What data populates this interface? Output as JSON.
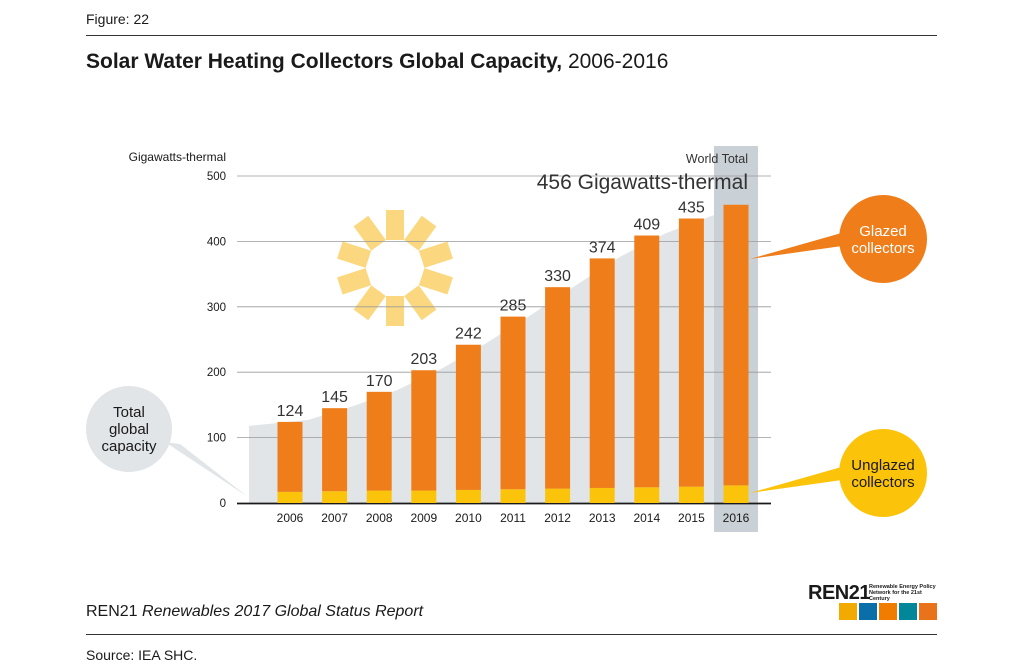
{
  "figure_label": "Figure: 22",
  "title_bold": "Solar Water Heating Collectors Global Capacity,",
  "title_years": "2006-2016",
  "report": {
    "org": "REN21",
    "name": "Renewables 2017 Global Status Report"
  },
  "source": "Source: IEA SHC.",
  "logo": {
    "text": "REN21",
    "subtitle": "Renewable Energy Policy Network for the 21st Century",
    "icon_colors": [
      "#f2a900",
      "#0a6ea8",
      "#f07d00",
      "#00889a",
      "#e8731a"
    ]
  },
  "colors": {
    "glazed": "#ef7d1a",
    "unglazed": "#fcc30b",
    "total_area": "#e1e5e8",
    "highlight": "#c9d0d6",
    "sun": "#fbd87f"
  },
  "chart_data": {
    "type": "bar",
    "stacked": true,
    "ylabel": "Gigawatts-thermal",
    "ylim": [
      0,
      500
    ],
    "yticks": [
      0,
      100,
      200,
      300,
      400,
      500
    ],
    "grid": true,
    "categories": [
      "2006",
      "2007",
      "2008",
      "2009",
      "2010",
      "2011",
      "2012",
      "2013",
      "2014",
      "2015",
      "2016"
    ],
    "totals": [
      124,
      145,
      170,
      203,
      242,
      285,
      330,
      374,
      409,
      435,
      456
    ],
    "series": [
      {
        "name": "Unglazed collectors",
        "values": [
          17,
          18,
          19,
          19,
          20,
          21,
          22,
          23,
          24,
          25,
          27
        ]
      },
      {
        "name": "Glazed collectors",
        "values": [
          107,
          127,
          151,
          184,
          222,
          264,
          308,
          351,
          385,
          410,
          429
        ]
      }
    ],
    "total_area_label": "Total global capacity",
    "annotation": {
      "label": "World Total",
      "value": "456 Gigawatts-thermal"
    }
  }
}
